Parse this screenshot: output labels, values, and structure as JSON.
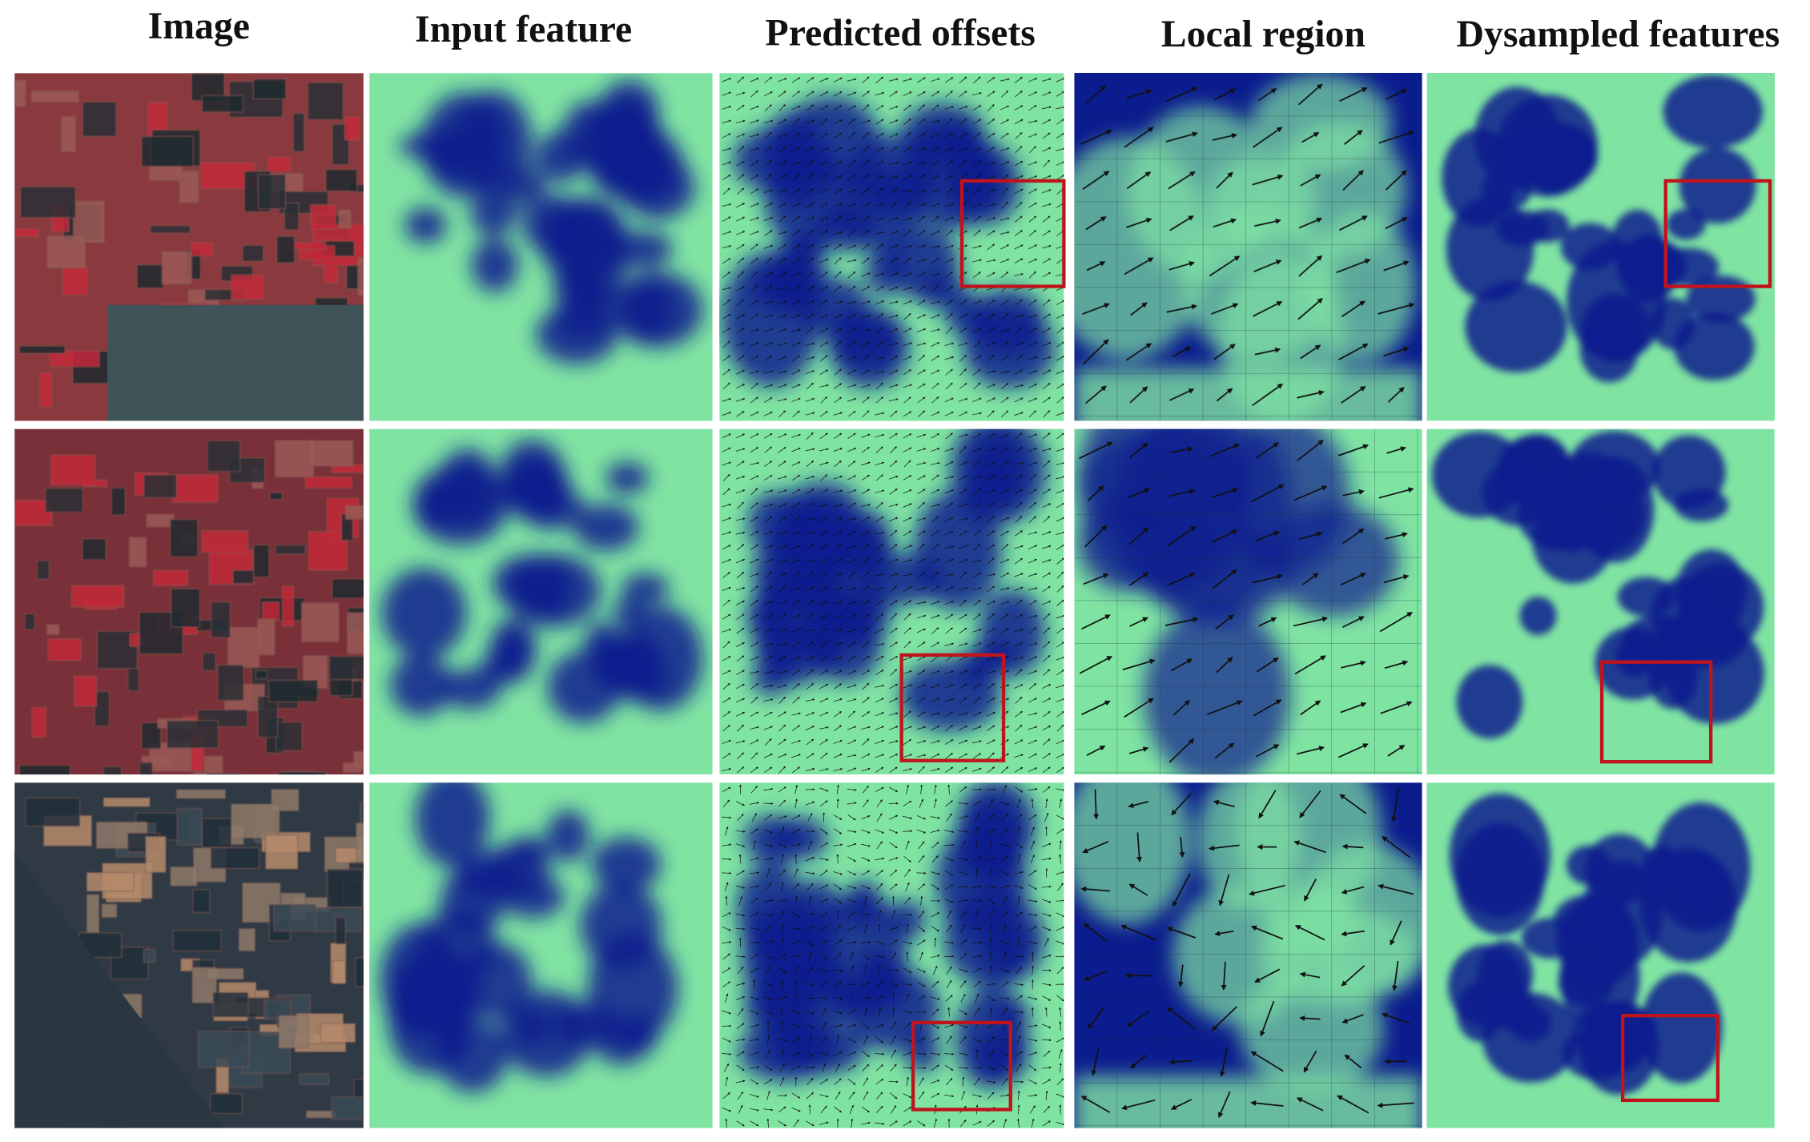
{
  "header": {
    "columns": [
      "Image",
      "Input feature",
      "Predicted offsets",
      "Local region",
      "Dysampled features"
    ]
  }
}
